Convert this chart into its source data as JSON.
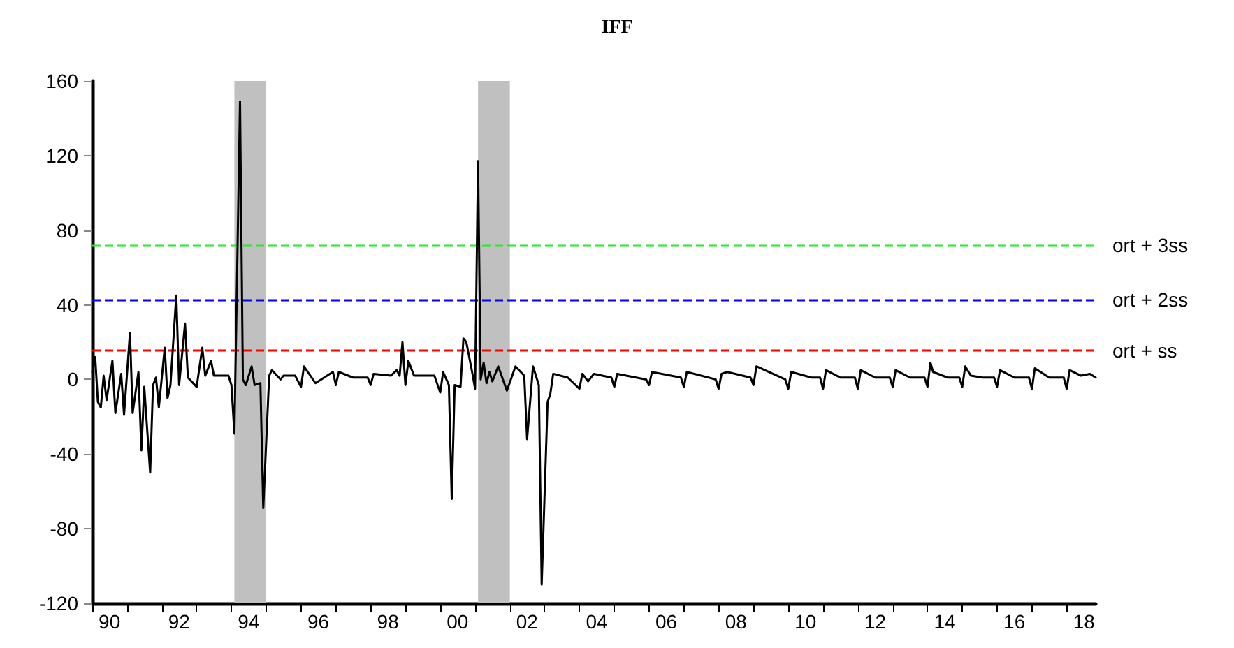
{
  "chart_data": {
    "type": "line",
    "title": "IFF",
    "x": [
      "1990-01",
      "1990-02",
      "1990-03",
      "1990-04",
      "1990-05",
      "1990-06",
      "1990-08",
      "1990-09",
      "1990-11",
      "1990-12",
      "1991-02",
      "1991-03",
      "1991-05",
      "1991-06",
      "1991-07",
      "1991-09",
      "1991-10",
      "1991-11",
      "1991-12",
      "1992-02",
      "1992-03",
      "1992-04",
      "1992-06",
      "1992-07",
      "1992-09",
      "1992-10",
      "1993-01",
      "1993-03",
      "1993-04",
      "1993-06",
      "1993-07",
      "1993-12",
      "1994-01",
      "1994-02",
      "1994-04",
      "1994-05",
      "1994-06",
      "1994-08",
      "1994-09",
      "1994-11",
      "1994-12",
      "1995-02",
      "1995-03",
      "1995-06",
      "1995-07",
      "1995-11",
      "1996-01",
      "1996-02",
      "1996-06",
      "1996-10",
      "1996-12",
      "1997-01",
      "1997-02",
      "1997-07",
      "1997-12",
      "1998-01",
      "1998-02",
      "1998-08",
      "1998-10",
      "1998-11",
      "1998-12",
      "1999-01",
      "1999-02",
      "1999-04",
      "1999-05",
      "1999-11",
      "2000-01",
      "2000-02",
      "2000-04",
      "2000-05",
      "2000-06",
      "2000-08",
      "2000-09",
      "2000-10",
      "2000-12",
      "2001-01",
      "2001-02",
      "2001-03",
      "2001-04",
      "2001-05",
      "2001-06",
      "2001-07",
      "2001-09",
      "2001-12",
      "2002-03",
      "2002-06",
      "2002-07",
      "2002-09",
      "2002-11",
      "2002-12",
      "2003-02",
      "2003-03",
      "2003-04",
      "2003-09",
      "2004-01",
      "2004-02",
      "2004-04",
      "2004-06",
      "2004-12",
      "2005-01",
      "2005-02",
      "2005-12",
      "2006-01",
      "2006-02",
      "2006-12",
      "2007-01",
      "2007-02",
      "2007-12",
      "2008-01",
      "2008-02",
      "2008-04",
      "2008-12",
      "2009-01",
      "2009-02",
      "2009-12",
      "2010-01",
      "2010-02",
      "2010-09",
      "2010-12",
      "2011-01",
      "2011-02",
      "2011-07",
      "2011-12",
      "2012-01",
      "2012-02",
      "2012-07",
      "2012-12",
      "2013-01",
      "2013-02",
      "2013-07",
      "2013-12",
      "2014-01",
      "2014-02",
      "2014-03",
      "2014-08",
      "2014-12",
      "2015-01",
      "2015-02",
      "2015-04",
      "2015-08",
      "2015-12",
      "2016-01",
      "2016-02",
      "2016-07",
      "2016-12",
      "2017-01",
      "2017-02",
      "2017-07",
      "2017-12",
      "2018-01",
      "2018-02",
      "2018-06",
      "2018-09",
      "2018-11"
    ],
    "series": [
      {
        "color": "#000000",
        "values": [
          4,
          12,
          -12,
          -15,
          2,
          -11,
          10,
          -18,
          3,
          -19,
          25,
          -18,
          4,
          -38,
          -4,
          -50,
          -3,
          1,
          -15,
          17,
          -10,
          -3,
          45,
          -3,
          30,
          1,
          -4,
          17,
          2,
          10,
          2,
          2,
          -3,
          -29,
          149,
          0,
          -3,
          7,
          -3,
          -2,
          -69,
          2,
          5,
          0,
          2,
          2,
          -4,
          7,
          -2,
          2,
          4,
          -3,
          4,
          1,
          1,
          -3,
          3,
          2,
          5,
          2,
          20,
          -3,
          10,
          2,
          2,
          2,
          -7,
          4,
          -3,
          -64,
          -3,
          -4,
          22,
          20,
          4,
          -5,
          117,
          0,
          9,
          -2,
          4,
          -1,
          7,
          -6,
          7,
          2,
          -32,
          7,
          -3,
          -110,
          -12,
          -8,
          3,
          1,
          -5,
          3,
          -1,
          3,
          1,
          -4,
          3,
          0,
          -3,
          4,
          1,
          -4,
          4,
          0,
          -5,
          3,
          4,
          1,
          -3,
          7,
          0,
          -5,
          4,
          1,
          1,
          -5,
          5,
          1,
          1,
          -5,
          5,
          1,
          1,
          -4,
          5,
          1,
          1,
          -4,
          9,
          4,
          1,
          1,
          -4,
          7,
          2,
          1,
          1,
          -4,
          5,
          1,
          1,
          -5,
          6,
          1,
          1,
          -5,
          5,
          2,
          3,
          1
        ]
      }
    ],
    "xlim": [
      "1990-01",
      "2018-11"
    ],
    "xticks": [
      {
        "value": "1990",
        "label": null
      },
      {
        "value": "1990-07",
        "label": "90"
      },
      {
        "value": "1991",
        "label": null
      },
      {
        "value": "1992",
        "label": null
      },
      {
        "value": "1992-07",
        "label": "92"
      },
      {
        "value": "1993",
        "label": null
      },
      {
        "value": "1994",
        "label": null
      },
      {
        "value": "1994-07",
        "label": "94"
      },
      {
        "value": "1995",
        "label": null
      },
      {
        "value": "1996",
        "label": null
      },
      {
        "value": "1996-07",
        "label": "96"
      },
      {
        "value": "1997",
        "label": null
      },
      {
        "value": "1998",
        "label": null
      },
      {
        "value": "1998-07",
        "label": "98"
      },
      {
        "value": "1999",
        "label": null
      },
      {
        "value": "2000",
        "label": null
      },
      {
        "value": "2000-07",
        "label": "00"
      },
      {
        "value": "2001",
        "label": null
      },
      {
        "value": "2002",
        "label": null
      },
      {
        "value": "2002-07",
        "label": "02"
      },
      {
        "value": "2003",
        "label": null
      },
      {
        "value": "2004",
        "label": null
      },
      {
        "value": "2004-07",
        "label": "04"
      },
      {
        "value": "2005",
        "label": null
      },
      {
        "value": "2006",
        "label": null
      },
      {
        "value": "2006-07",
        "label": "06"
      },
      {
        "value": "2007",
        "label": null
      },
      {
        "value": "2008",
        "label": null
      },
      {
        "value": "2008-07",
        "label": "08"
      },
      {
        "value": "2009",
        "label": null
      },
      {
        "value": "2010",
        "label": null
      },
      {
        "value": "2010-07",
        "label": "10"
      },
      {
        "value": "2011",
        "label": null
      },
      {
        "value": "2012",
        "label": null
      },
      {
        "value": "2012-07",
        "label": "12"
      },
      {
        "value": "2013",
        "label": null
      },
      {
        "value": "2014",
        "label": null
      },
      {
        "value": "2014-07",
        "label": "14"
      },
      {
        "value": "2015",
        "label": null
      },
      {
        "value": "2016",
        "label": null
      },
      {
        "value": "2016-07",
        "label": "16"
      },
      {
        "value": "2017",
        "label": null
      },
      {
        "value": "2018",
        "label": null
      },
      {
        "value": "2018-07",
        "label": "18"
      }
    ],
    "ylim": [
      -120,
      160
    ],
    "yticks": [
      -120,
      -80,
      -40,
      0,
      40,
      80,
      120,
      160
    ],
    "ref_lines": [
      {
        "axis": "y",
        "value": 72,
        "label": "ort + 3ss",
        "color": "#22ee22",
        "line_style": "dashed"
      },
      {
        "axis": "y",
        "value": 43,
        "label": "ort + 2ss",
        "color": "#0000ff",
        "line_style": "dashed"
      },
      {
        "axis": "y",
        "value": 15.5,
        "label": "ort + ss",
        "color": "#ff0000",
        "line_style": "dashed"
      }
    ],
    "bands": [
      {
        "axis": "x",
        "from": "1994-02",
        "to": "1995-01",
        "color": "#c0c0c0"
      },
      {
        "axis": "x",
        "from": "2001-02",
        "to": "2002-01",
        "color": "#c0c0c0"
      }
    ],
    "grid": false,
    "marker": "none",
    "line_style": "solid"
  }
}
